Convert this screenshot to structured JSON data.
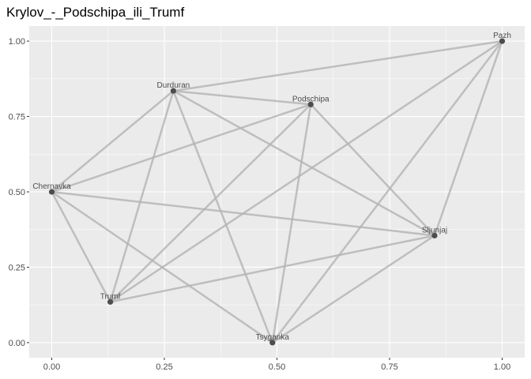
{
  "chart_data": {
    "type": "scatter",
    "title": "Krylov_-_Podschipa_ili_Trumf",
    "xlabel": "",
    "ylabel": "",
    "xlim": [
      -0.05,
      1.05
    ],
    "ylim": [
      -0.05,
      1.05
    ],
    "x_ticks": [
      0.0,
      0.25,
      0.5,
      0.75,
      1.0
    ],
    "y_ticks": [
      0.0,
      0.25,
      0.5,
      0.75,
      1.0
    ],
    "x_tick_labels": [
      "0.00",
      "0.25",
      "0.50",
      "0.75",
      "1.00"
    ],
    "y_tick_labels": [
      "0.00",
      "0.25",
      "0.50",
      "0.75",
      "1.00"
    ],
    "grid": true,
    "nodes": [
      {
        "name": "Pazh",
        "x": 1.0,
        "y": 1.0
      },
      {
        "name": "Durduran",
        "x": 0.27,
        "y": 0.835
      },
      {
        "name": "Podschipa",
        "x": 0.575,
        "y": 0.79
      },
      {
        "name": "Chernavka",
        "x": 0.0,
        "y": 0.5
      },
      {
        "name": "Sljunjaj",
        "x": 0.85,
        "y": 0.355
      },
      {
        "name": "Trumf",
        "x": 0.13,
        "y": 0.135
      },
      {
        "name": "Tsyganka",
        "x": 0.49,
        "y": 0.0
      }
    ],
    "edges": [
      [
        "Pazh",
        "Durduran"
      ],
      [
        "Pazh",
        "Sljunjaj"
      ],
      [
        "Pazh",
        "Trumf"
      ],
      [
        "Pazh",
        "Tsyganka"
      ],
      [
        "Durduran",
        "Podschipa"
      ],
      [
        "Durduran",
        "Chernavka"
      ],
      [
        "Durduran",
        "Sljunjaj"
      ],
      [
        "Durduran",
        "Trumf"
      ],
      [
        "Durduran",
        "Tsyganka"
      ],
      [
        "Podschipa",
        "Chernavka"
      ],
      [
        "Podschipa",
        "Sljunjaj"
      ],
      [
        "Podschipa",
        "Trumf"
      ],
      [
        "Podschipa",
        "Tsyganka"
      ],
      [
        "Chernavka",
        "Sljunjaj"
      ],
      [
        "Chernavka",
        "Trumf"
      ],
      [
        "Chernavka",
        "Tsyganka"
      ],
      [
        "Sljunjaj",
        "Trumf"
      ],
      [
        "Sljunjaj",
        "Tsyganka"
      ]
    ],
    "colors": {
      "panel": "#ebebeb",
      "grid_major": "#ffffff",
      "edge": "#b3b3b3",
      "node": "#4d4d4d"
    }
  }
}
